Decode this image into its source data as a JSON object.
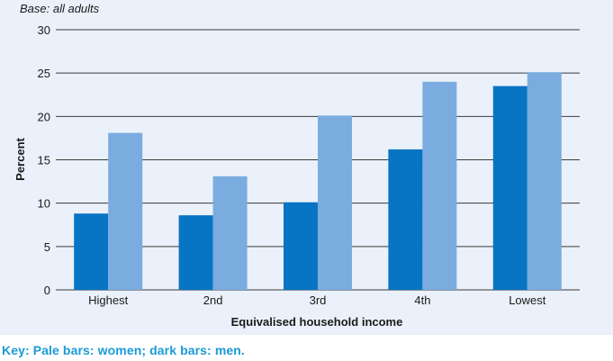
{
  "base_note": "Base: all adults",
  "key_caption": "Key: Pale bars: women; dark bars: men.",
  "chart_data": {
    "type": "bar",
    "title": "",
    "xlabel": "Equivalised household income",
    "ylabel": "Percent",
    "categories": [
      "Highest",
      "2nd",
      "3rd",
      "4th",
      "Lowest"
    ],
    "ylim": [
      0,
      30
    ],
    "yticks": [
      0,
      5,
      10,
      15,
      20,
      25,
      30
    ],
    "grid": true,
    "series": [
      {
        "name": "men",
        "color": "#0874c4",
        "values": [
          8.8,
          8.6,
          10.1,
          16.2,
          23.5
        ]
      },
      {
        "name": "women",
        "color": "#7aacdf",
        "values": [
          18.1,
          13.1,
          20.1,
          24.0,
          25.1
        ]
      }
    ]
  }
}
